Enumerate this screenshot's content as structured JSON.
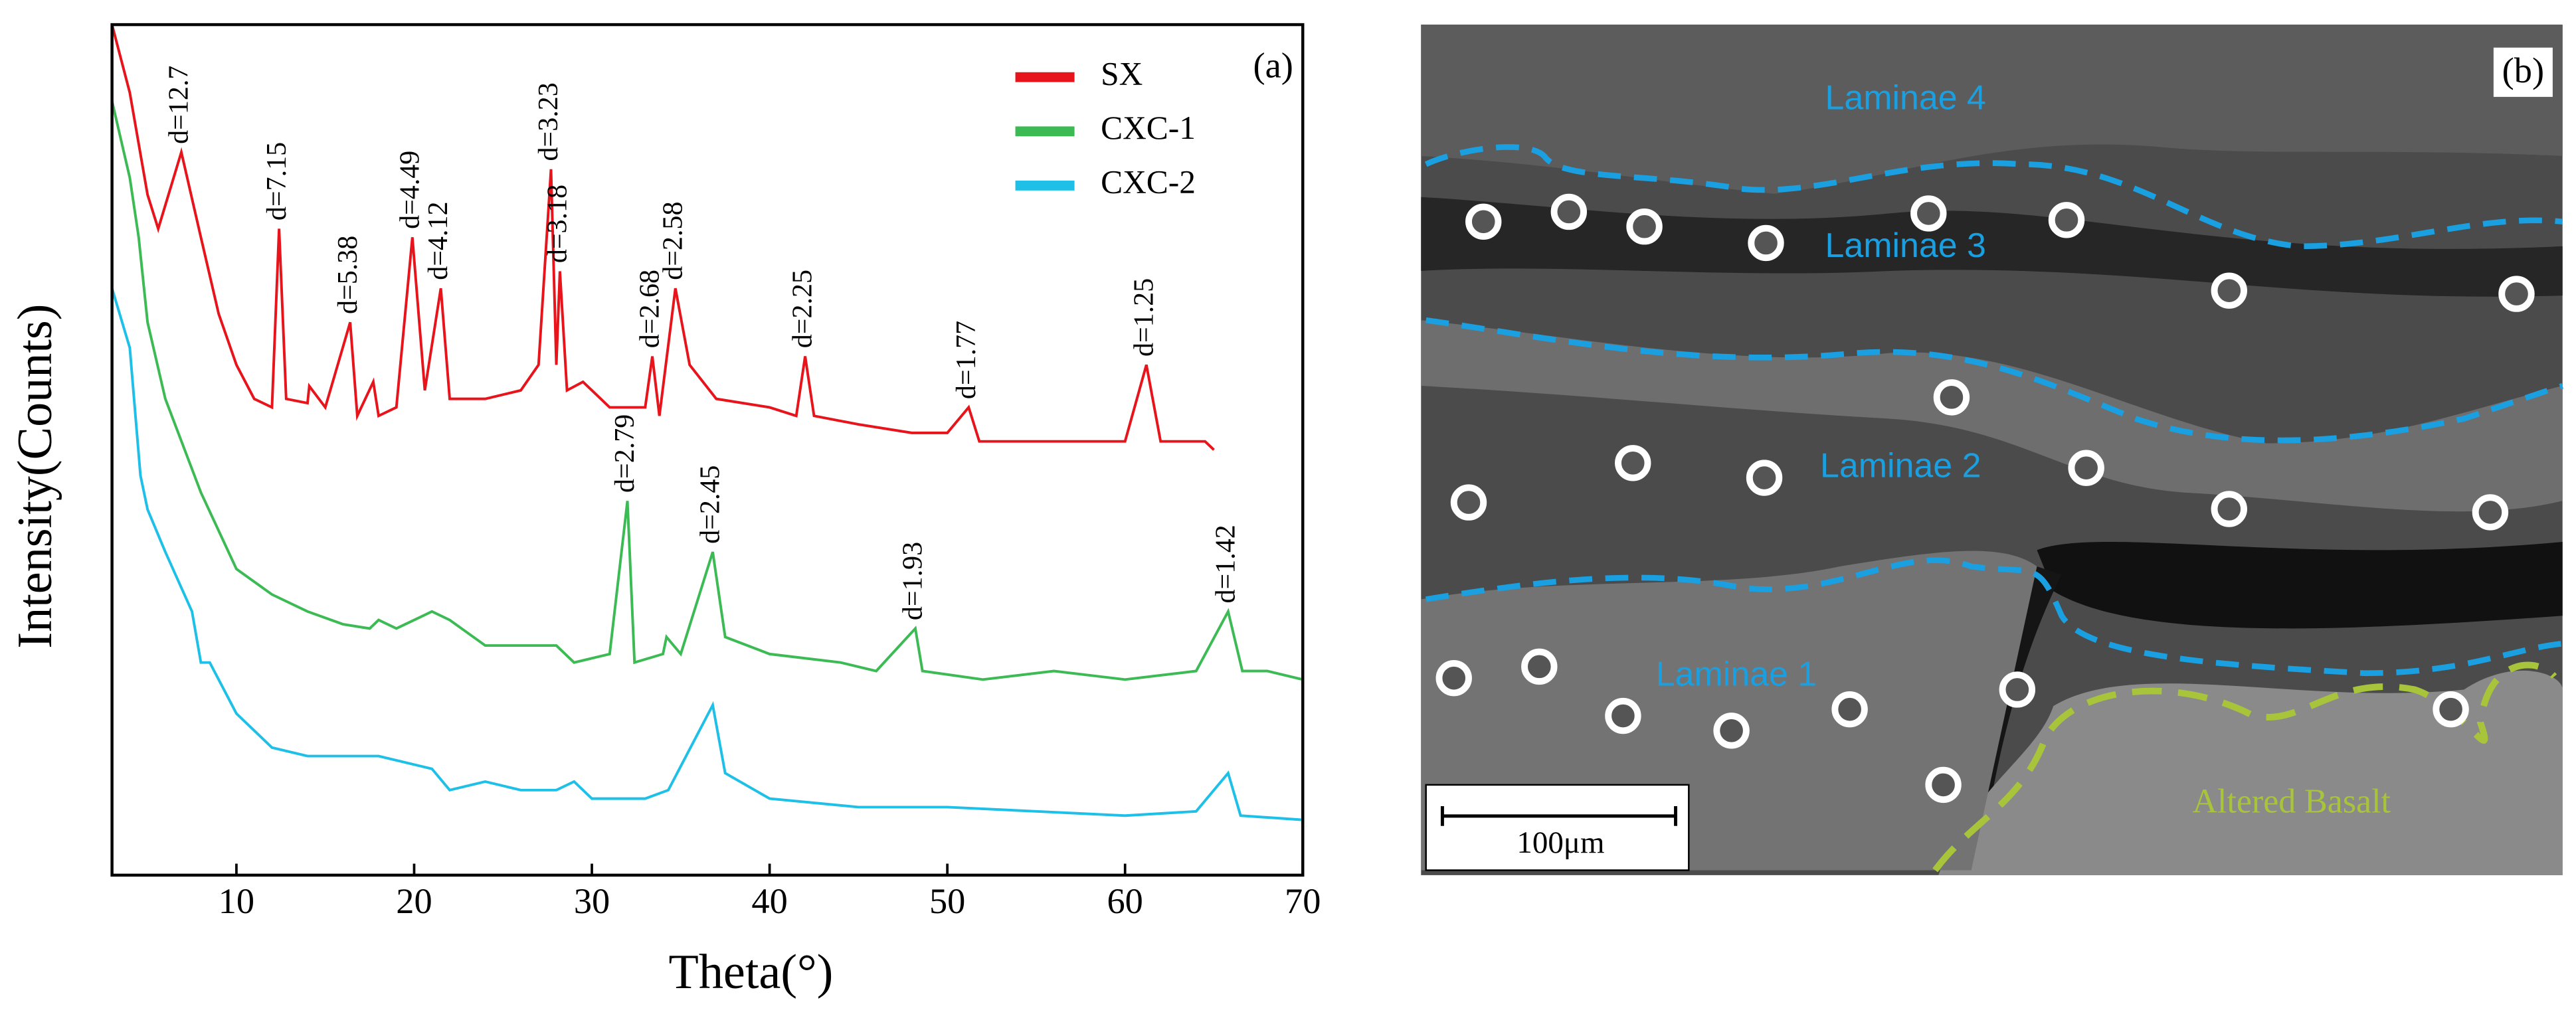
{
  "chart_data": {
    "type": "line",
    "panel_label": "(a)",
    "xlabel": "Theta(°)",
    "ylabel": "Intensity(Counts)",
    "xlim": [
      3,
      70
    ],
    "xticks": [
      10,
      20,
      30,
      40,
      50,
      60,
      70
    ],
    "ylim": [
      0,
      100
    ],
    "yticks": [],
    "legend": "upper right",
    "series": [
      {
        "name": "SX",
        "color": "#e8141b",
        "x": [
          3.0,
          4.0,
          5.0,
          5.6,
          6.9,
          8.0,
          9.0,
          10.0,
          11.0,
          12.0,
          12.4,
          12.8,
          14.0,
          14.1,
          15.0,
          16.4,
          16.8,
          17.7,
          18.0,
          19.0,
          19.9,
          20.6,
          21.5,
          22.0,
          24.0,
          26.0,
          27.0,
          27.7,
          28.0,
          28.2,
          28.6,
          29.5,
          31.0,
          33.0,
          33.4,
          33.8,
          34.7,
          35.5,
          37.0,
          40.0,
          41.5,
          42.0,
          42.5,
          45.0,
          48.0,
          50.0,
          51.2,
          51.8,
          55.0,
          60.0,
          61.2,
          62.0,
          64.5,
          65.0
        ],
        "values": [
          100,
          92,
          80,
          76,
          85,
          75,
          66,
          60,
          56,
          55,
          76,
          56,
          55.5,
          57.5,
          55,
          65,
          54,
          58,
          54,
          55,
          75,
          57,
          69,
          56,
          56,
          57,
          60,
          83,
          60,
          71,
          57,
          58,
          55,
          55,
          61,
          54,
          69,
          60,
          56,
          55,
          54,
          61,
          54,
          53,
          52,
          52,
          55,
          51,
          51,
          51,
          60,
          51,
          51,
          50
        ]
      },
      {
        "name": "CXC-1",
        "color": "#3cba54",
        "x": [
          3.0,
          4.0,
          4.5,
          5.0,
          6.0,
          8.0,
          10.0,
          12.0,
          14.0,
          16.0,
          17.5,
          18.0,
          19.0,
          21.0,
          22.0,
          24.0,
          26.0,
          28.0,
          29.0,
          31.0,
          32.0,
          32.4,
          34.0,
          34.2,
          35.0,
          36.8,
          37.5,
          40.0,
          44.0,
          46.0,
          48.2,
          48.6,
          52.0,
          56.0,
          60.0,
          64.0,
          65.8,
          66.6,
          68.0,
          70.0
        ],
        "values": [
          91,
          82,
          75,
          65,
          56,
          45,
          36,
          33,
          31,
          29.5,
          29,
          30,
          29,
          31,
          30,
          27,
          27,
          27,
          25,
          26,
          44,
          25,
          26,
          28,
          26,
          38,
          28,
          26,
          25,
          24,
          29,
          24,
          23,
          24,
          23,
          24,
          31,
          24,
          24,
          23
        ]
      },
      {
        "name": "CXC-2",
        "color": "#1ec0e8",
        "x": [
          3.0,
          4.0,
          4.6,
          5.0,
          6.0,
          7.5,
          8.0,
          8.5,
          10.0,
          12.0,
          14.0,
          18.0,
          20.0,
          21.0,
          22.0,
          24.0,
          26.0,
          28.0,
          29.0,
          30.0,
          33.0,
          34.3,
          36.8,
          37.5,
          40.0,
          45.0,
          50.0,
          55.0,
          60.0,
          64.0,
          65.8,
          66.5,
          70.0
        ],
        "values": [
          69,
          62,
          47,
          43,
          38,
          31,
          25,
          25,
          19,
          15,
          14,
          14,
          13,
          12.5,
          10,
          11,
          10,
          10,
          11,
          9,
          9,
          10,
          20,
          12,
          9,
          8,
          8,
          7.5,
          7,
          7.5,
          12,
          7,
          6.5
        ]
      }
    ],
    "annotations": [
      {
        "text": "d=12.7",
        "x": 6.9,
        "y": 85
      },
      {
        "text": "d=7.15",
        "x": 12.4,
        "y": 76
      },
      {
        "text": "d=5.38",
        "x": 16.4,
        "y": 65
      },
      {
        "text": "d=4.49",
        "x": 19.9,
        "y": 75
      },
      {
        "text": "d=4.12",
        "x": 21.5,
        "y": 69
      },
      {
        "text": "d=3.23",
        "x": 27.7,
        "y": 83
      },
      {
        "text": "d=3.18",
        "x": 28.2,
        "y": 71
      },
      {
        "text": "d=2.68",
        "x": 33.4,
        "y": 61
      },
      {
        "text": "d=2.58",
        "x": 34.7,
        "y": 69
      },
      {
        "text": "d=2.25",
        "x": 42.0,
        "y": 61
      },
      {
        "text": "d=1.77",
        "x": 51.2,
        "y": 55
      },
      {
        "text": "d=1.25",
        "x": 61.2,
        "y": 60
      },
      {
        "text": "d=2.79",
        "x": 32.0,
        "y": 44
      },
      {
        "text": "d=2.45",
        "x": 36.8,
        "y": 38
      },
      {
        "text": "d=1.93",
        "x": 48.2,
        "y": 29
      },
      {
        "text": "d=1.42",
        "x": 65.8,
        "y": 31
      }
    ]
  },
  "image_panel": {
    "panel_label": "(b)",
    "layers": [
      "Laminae 4",
      "Laminae 3",
      "Laminae 2",
      "Laminae 1",
      "Altered Basalt"
    ],
    "scale_bar": "100μm"
  }
}
